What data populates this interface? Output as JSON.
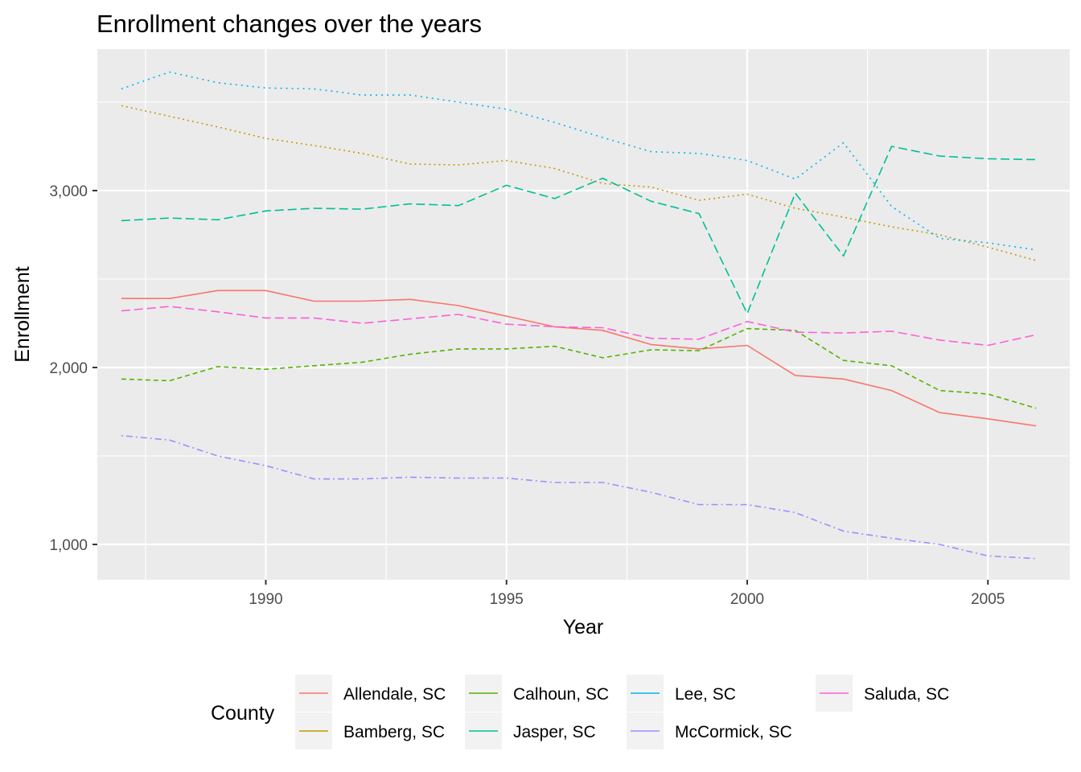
{
  "chart_data": {
    "type": "line",
    "title": "Enrollment changes over the years",
    "xlabel": "Year",
    "ylabel": "Enrollment",
    "xlim": [
      1986.5,
      2006.7
    ],
    "ylim": [
      800,
      3800
    ],
    "x_ticks": [
      1990,
      1995,
      2000,
      2005
    ],
    "x_tick_labels": [
      "1990",
      "1995",
      "2000",
      "2005"
    ],
    "y_ticks": [
      1000,
      2000,
      3000
    ],
    "y_tick_labels": [
      "1,000",
      "2,000",
      "3,000"
    ],
    "grid": true,
    "panel_background": "#ebebeb",
    "legend": {
      "title": "County",
      "position": "bottom"
    },
    "x": [
      1987,
      1988,
      1989,
      1990,
      1991,
      1992,
      1993,
      1994,
      1995,
      1996,
      1997,
      1998,
      1999,
      2000,
      2001,
      2002,
      2003,
      2004,
      2005,
      2006
    ],
    "series": [
      {
        "name": "Allendale, SC",
        "color": "#F8766D",
        "dash": "solid",
        "values": [
          2390,
          2390,
          2435,
          2435,
          2375,
          2375,
          2385,
          2350,
          2290,
          2230,
          2210,
          2130,
          2105,
          2125,
          1955,
          1935,
          1870,
          1745,
          1710,
          1670
        ]
      },
      {
        "name": "Bamberg, SC",
        "color": "#C49A00",
        "dash": "dotted",
        "values": [
          3480,
          3420,
          3360,
          3295,
          3255,
          3210,
          3150,
          3145,
          3170,
          3125,
          3040,
          3020,
          2945,
          2980,
          2900,
          2850,
          2795,
          2750,
          2680,
          2605
        ]
      },
      {
        "name": "Calhoun, SC",
        "color": "#53B400",
        "dash": "dashed",
        "values": [
          1935,
          1925,
          2005,
          1990,
          2010,
          2030,
          2075,
          2105,
          2105,
          2120,
          2055,
          2100,
          2095,
          2220,
          2210,
          2040,
          2010,
          1870,
          1850,
          1770
        ]
      },
      {
        "name": "Jasper, SC",
        "color": "#00C094",
        "dash": "longdash",
        "values": [
          2830,
          2845,
          2835,
          2885,
          2900,
          2895,
          2925,
          2915,
          3030,
          2955,
          3070,
          2940,
          2870,
          2305,
          2985,
          2630,
          3250,
          3195,
          3180,
          3175
        ]
      },
      {
        "name": "Lee, SC",
        "color": "#00B6EB",
        "dash": "dotted2",
        "values": [
          3575,
          3670,
          3610,
          3580,
          3575,
          3540,
          3540,
          3500,
          3460,
          3385,
          3300,
          3220,
          3210,
          3170,
          3065,
          3270,
          2910,
          2730,
          2705,
          2665
        ]
      },
      {
        "name": "McCormick, SC",
        "color": "#A58AFF",
        "dash": "dotdash",
        "values": [
          1615,
          1590,
          1500,
          1445,
          1370,
          1370,
          1380,
          1375,
          1375,
          1350,
          1350,
          1295,
          1225,
          1225,
          1180,
          1075,
          1035,
          1000,
          935,
          920
        ]
      },
      {
        "name": "Saluda, SC",
        "color": "#FB61D7",
        "dash": "longdash",
        "values": [
          2320,
          2345,
          2315,
          2280,
          2280,
          2250,
          2275,
          2300,
          2245,
          2230,
          2225,
          2165,
          2160,
          2260,
          2200,
          2195,
          2205,
          2155,
          2125,
          2185
        ]
      }
    ]
  }
}
